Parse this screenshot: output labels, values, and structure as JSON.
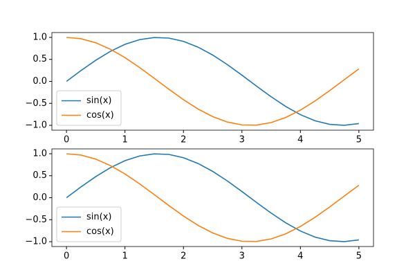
{
  "chart_data": [
    {
      "type": "line",
      "x": [
        0,
        0.25,
        0.5,
        0.75,
        1,
        1.25,
        1.5,
        1.75,
        2,
        2.25,
        2.5,
        2.75,
        3,
        3.25,
        3.5,
        3.75,
        4,
        4.25,
        4.5,
        4.75,
        5
      ],
      "series": [
        {
          "name": "sin(x)",
          "color": "#1f77b4",
          "values": [
            0,
            0.2474,
            0.4794,
            0.6816,
            0.8415,
            0.949,
            0.9975,
            0.984,
            0.9093,
            0.7781,
            0.5985,
            0.3817,
            0.1411,
            -0.1082,
            -0.3508,
            -0.5716,
            -0.7568,
            -0.895,
            -0.9775,
            -0.9993,
            -0.9589
          ]
        },
        {
          "name": "cos(x)",
          "color": "#ff7f0e",
          "values": [
            1,
            0.9689,
            0.8776,
            0.7317,
            0.5403,
            0.3153,
            0.0707,
            -0.1782,
            -0.4161,
            -0.6282,
            -0.8011,
            -0.9243,
            -0.99,
            -0.9941,
            -0.9365,
            -0.8206,
            -0.6536,
            -0.4461,
            -0.2108,
            0.0376,
            0.2837
          ]
        }
      ],
      "xlim": [
        -0.25,
        5.25
      ],
      "ylim": [
        -1.11,
        1.11
      ],
      "xticks": [
        0,
        1,
        2,
        3,
        4,
        5
      ],
      "yticks": [
        {
          "value": 1,
          "label": "1.0"
        },
        {
          "value": 0.5,
          "label": "0.5"
        },
        {
          "value": 0,
          "label": "0.0"
        },
        {
          "value": -0.5,
          "label": "−0.5"
        },
        {
          "value": -1,
          "label": "−1.0"
        }
      ],
      "legend": "lower left"
    },
    {
      "type": "line",
      "x": [
        0,
        0.25,
        0.5,
        0.75,
        1,
        1.25,
        1.5,
        1.75,
        2,
        2.25,
        2.5,
        2.75,
        3,
        3.25,
        3.5,
        3.75,
        4,
        4.25,
        4.5,
        4.75,
        5
      ],
      "series": [
        {
          "name": "sin(x)",
          "color": "#1f77b4",
          "values": [
            0,
            0.2474,
            0.4794,
            0.6816,
            0.8415,
            0.949,
            0.9975,
            0.984,
            0.9093,
            0.7781,
            0.5985,
            0.3817,
            0.1411,
            -0.1082,
            -0.3508,
            -0.5716,
            -0.7568,
            -0.895,
            -0.9775,
            -0.9993,
            -0.9589
          ]
        },
        {
          "name": "cos(x)",
          "color": "#ff7f0e",
          "values": [
            1,
            0.9689,
            0.8776,
            0.7317,
            0.5403,
            0.3153,
            0.0707,
            -0.1782,
            -0.4161,
            -0.6282,
            -0.8011,
            -0.9243,
            -0.99,
            -0.9941,
            -0.9365,
            -0.8206,
            -0.6536,
            -0.4461,
            -0.2108,
            0.0376,
            0.2837
          ]
        }
      ],
      "xlim": [
        -0.25,
        5.25
      ],
      "ylim": [
        -1.11,
        1.11
      ],
      "xticks": [
        0,
        1,
        2,
        3,
        4,
        5
      ],
      "yticks": [
        {
          "value": 1,
          "label": "1.0"
        },
        {
          "value": 0.5,
          "label": "0.5"
        },
        {
          "value": 0,
          "label": "0.0"
        },
        {
          "value": -0.5,
          "label": "−0.5"
        },
        {
          "value": -1,
          "label": "−1.0"
        }
      ],
      "legend": "lower left"
    }
  ]
}
